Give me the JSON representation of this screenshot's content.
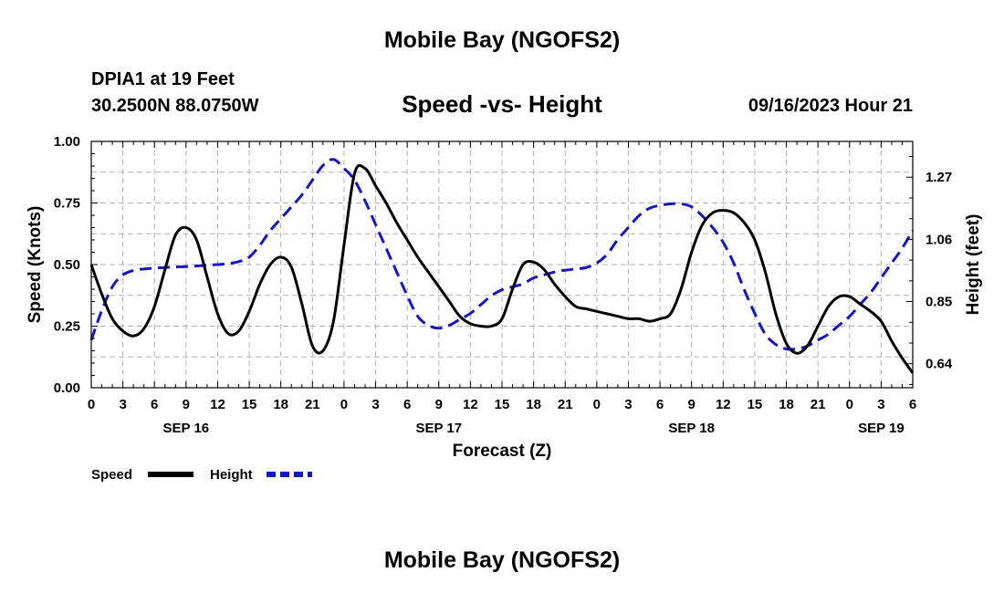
{
  "header": {
    "title": "Mobile Bay (NGOFS2)",
    "station": "DPIA1 at 19 Feet",
    "coords": "30.2500N  88.0750W",
    "subtitle": "Speed -vs- Height",
    "datetime": "09/16/2023 Hour 21"
  },
  "footer": {
    "title": "Mobile Bay (NGOFS2)"
  },
  "chart_data": {
    "type": "line",
    "title": "Speed -vs- Height",
    "xlabel": "Forecast (Z)",
    "ylabel": "Speed (Knots)",
    "y2label": "Height (feet)",
    "xlim": [
      0,
      78
    ],
    "ylim": [
      0,
      1.0
    ],
    "y2lim": [
      0.5591,
      1.3909
    ],
    "grid": true,
    "legend_position": "bottom-left",
    "x_tick_labels": [
      "0",
      "3",
      "6",
      "9",
      "12",
      "15",
      "18",
      "21",
      "0",
      "3",
      "6",
      "9",
      "12",
      "15",
      "18",
      "21",
      "0",
      "3",
      "6",
      "9",
      "12",
      "15",
      "18",
      "21",
      "0",
      "3",
      "6"
    ],
    "y_ticks": [
      0.0,
      0.25,
      0.5,
      0.75,
      1.0
    ],
    "y_tick_labels": [
      "0.00",
      "0.25",
      "0.50",
      "0.75",
      "1.00"
    ],
    "y2_ticks": [
      0.64,
      0.85,
      1.06,
      1.27
    ],
    "y2_tick_labels": [
      "0.64",
      "0.85",
      "1.06",
      "1.27"
    ],
    "date_labels": [
      {
        "hour": 9,
        "label": "SEP 16"
      },
      {
        "hour": 33,
        "label": "SEP 17"
      },
      {
        "hour": 57,
        "label": "SEP 18"
      },
      {
        "hour": 75,
        "label": "SEP 19"
      }
    ],
    "series": [
      {
        "name": "Speed",
        "axis": "left",
        "color": "#000000",
        "dash": "solid",
        "x": [
          0,
          1,
          2,
          3,
          4,
          5,
          6,
          7,
          8,
          9,
          10,
          11,
          12,
          13,
          14,
          15,
          16,
          17,
          18,
          19,
          20,
          21,
          22,
          23,
          24,
          25,
          26,
          27,
          28,
          29,
          30,
          31,
          32,
          33,
          34,
          35,
          36,
          37,
          38,
          39,
          40,
          41,
          42,
          43,
          44,
          45,
          46,
          47,
          48,
          49,
          50,
          51,
          52,
          53,
          54,
          55,
          56,
          57,
          58,
          59,
          60,
          61,
          62,
          63,
          64,
          65,
          66,
          67,
          68,
          69,
          70,
          71,
          72,
          73,
          74,
          75,
          76,
          77,
          78
        ],
        "values": [
          0.5,
          0.38,
          0.28,
          0.23,
          0.21,
          0.24,
          0.33,
          0.48,
          0.62,
          0.65,
          0.6,
          0.45,
          0.3,
          0.22,
          0.23,
          0.31,
          0.42,
          0.5,
          0.53,
          0.49,
          0.34,
          0.17,
          0.15,
          0.27,
          0.58,
          0.87,
          0.89,
          0.82,
          0.75,
          0.67,
          0.6,
          0.53,
          0.47,
          0.41,
          0.35,
          0.29,
          0.26,
          0.25,
          0.25,
          0.28,
          0.4,
          0.5,
          0.51,
          0.48,
          0.42,
          0.37,
          0.33,
          0.32,
          0.31,
          0.3,
          0.29,
          0.28,
          0.28,
          0.27,
          0.28,
          0.3,
          0.4,
          0.55,
          0.66,
          0.71,
          0.72,
          0.71,
          0.67,
          0.6,
          0.47,
          0.3,
          0.18,
          0.14,
          0.17,
          0.25,
          0.33,
          0.37,
          0.37,
          0.34,
          0.31,
          0.27,
          0.19,
          0.12,
          0.06
        ]
      },
      {
        "name": "Height",
        "axis": "right",
        "color": "#1515c4",
        "dash": "dashed",
        "x": [
          0,
          1,
          2,
          3,
          4,
          5,
          6,
          7,
          8,
          9,
          10,
          11,
          12,
          13,
          14,
          15,
          16,
          17,
          18,
          19,
          20,
          21,
          22,
          23,
          24,
          25,
          26,
          27,
          28,
          29,
          30,
          31,
          32,
          33,
          34,
          35,
          36,
          37,
          38,
          39,
          40,
          41,
          42,
          43,
          44,
          45,
          46,
          47,
          48,
          49,
          50,
          51,
          52,
          53,
          54,
          55,
          56,
          57,
          58,
          59,
          60,
          61,
          62,
          63,
          64,
          65,
          66,
          67,
          68,
          69,
          70,
          71,
          72,
          73,
          74,
          75,
          76,
          77,
          78
        ],
        "values": [
          0.72,
          0.82,
          0.9,
          0.94,
          0.955,
          0.96,
          0.963,
          0.965,
          0.967,
          0.968,
          0.97,
          0.973,
          0.975,
          0.978,
          0.985,
          1.0,
          1.04,
          1.09,
          1.13,
          1.17,
          1.21,
          1.26,
          1.31,
          1.33,
          1.3,
          1.26,
          1.19,
          1.11,
          1.03,
          0.95,
          0.87,
          0.8,
          0.77,
          0.76,
          0.77,
          0.79,
          0.81,
          0.84,
          0.87,
          0.89,
          0.9,
          0.91,
          0.93,
          0.94,
          0.95,
          0.956,
          0.96,
          0.965,
          0.98,
          1.01,
          1.06,
          1.1,
          1.14,
          1.165,
          1.175,
          1.18,
          1.18,
          1.17,
          1.14,
          1.1,
          1.05,
          0.98,
          0.89,
          0.81,
          0.74,
          0.705,
          0.69,
          0.69,
          0.7,
          0.72,
          0.74,
          0.77,
          0.8,
          0.84,
          0.88,
          0.93,
          0.98,
          1.03,
          1.09
        ]
      }
    ]
  }
}
